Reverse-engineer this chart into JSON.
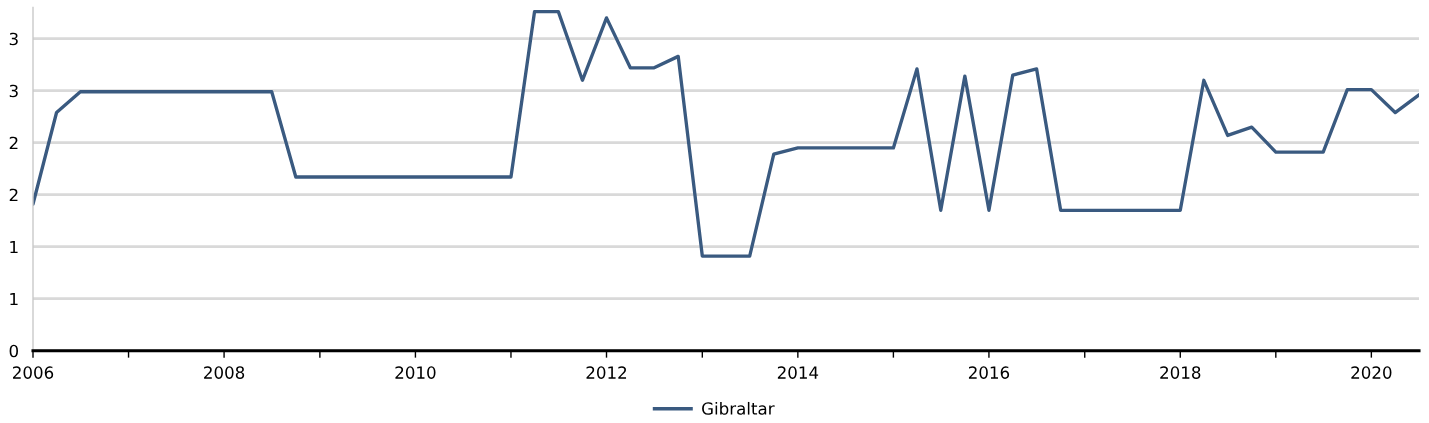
{
  "chart_data": {
    "type": "line",
    "x": [
      "2006-01",
      "2006-04",
      "2006-07",
      "2006-10",
      "2007-01",
      "2007-04",
      "2007-07",
      "2007-10",
      "2008-01",
      "2008-04",
      "2008-07",
      "2008-10",
      "2009-01",
      "2009-04",
      "2009-07",
      "2009-10",
      "2010-01",
      "2010-04",
      "2010-07",
      "2010-10",
      "2011-01",
      "2011-04",
      "2011-07",
      "2011-10",
      "2012-01",
      "2012-04",
      "2012-07",
      "2012-10",
      "2013-01",
      "2013-04",
      "2013-07",
      "2013-10",
      "2014-01",
      "2014-04",
      "2014-07",
      "2014-10",
      "2015-01",
      "2015-04",
      "2015-07",
      "2015-10",
      "2016-01",
      "2016-04",
      "2016-07",
      "2016-10",
      "2017-01",
      "2017-04",
      "2017-07",
      "2017-10",
      "2018-01",
      "2018-04",
      "2018-07",
      "2018-10",
      "2019-01",
      "2019-04",
      "2019-07",
      "2019-10",
      "2020-01",
      "2020-04",
      "2020-07"
    ],
    "series": [
      {
        "name": "Gibraltar",
        "color": "#3a5a80",
        "values": [
          1.41,
          2.29,
          2.49,
          2.49,
          2.49,
          2.49,
          2.49,
          2.49,
          2.49,
          2.49,
          2.49,
          1.67,
          1.67,
          1.67,
          1.67,
          1.67,
          1.67,
          1.67,
          1.67,
          1.67,
          1.67,
          3.26,
          3.26,
          2.6,
          3.2,
          2.72,
          2.72,
          2.83,
          0.91,
          0.91,
          0.91,
          1.89,
          1.95,
          1.95,
          1.95,
          1.95,
          1.95,
          2.71,
          1.35,
          2.64,
          1.35,
          2.65,
          2.71,
          1.35,
          1.35,
          1.35,
          1.35,
          1.35,
          1.35,
          2.6,
          2.07,
          2.15,
          1.91,
          1.91,
          1.91,
          2.51,
          2.51,
          2.29,
          2.46
        ]
      }
    ],
    "xlim": [
      "2006-01",
      "2020-07"
    ],
    "xticks": [
      "2006",
      {
        "value": "2007",
        "label": null
      },
      "2008",
      {
        "value": "2009",
        "label": null
      },
      "2010",
      {
        "value": "2011",
        "label": null
      },
      "2012",
      {
        "value": "2013",
        "label": null
      },
      "2014",
      {
        "value": "2015",
        "label": null
      },
      "2016",
      {
        "value": "2017",
        "label": null
      },
      "2018",
      {
        "value": "2019",
        "label": null
      },
      "2020"
    ],
    "ylim": [
      0,
      3.3
    ],
    "yticks": [
      0,
      {
        "value": 0.5,
        "label": "1"
      },
      1,
      {
        "value": 1.5,
        "label": "2"
      },
      2,
      {
        "value": 2.5,
        "label": "3"
      },
      3
    ],
    "grid": "y",
    "legend": "bottom",
    "line_style": "solid"
  }
}
